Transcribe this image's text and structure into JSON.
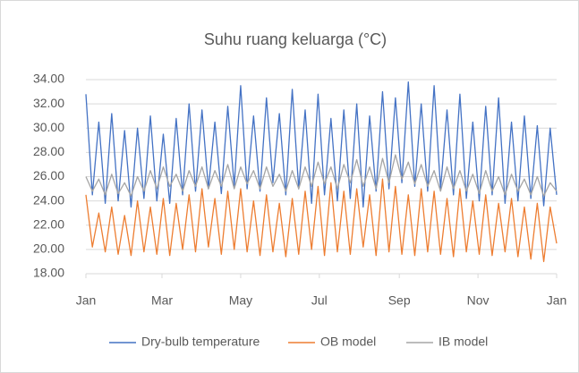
{
  "chart_data": {
    "type": "line",
    "title": "Suhu ruang keluarga (°C)",
    "x": [
      0,
      5,
      10,
      15,
      20,
      25,
      30,
      35,
      40,
      45,
      50,
      55,
      60,
      65,
      70,
      75,
      80,
      85,
      90,
      95,
      100,
      105,
      110,
      115,
      120,
      125,
      130,
      135,
      140,
      145,
      150,
      155,
      160,
      165,
      170,
      175,
      180,
      185,
      190,
      195,
      200,
      205,
      210,
      215,
      220,
      225,
      230,
      235,
      240,
      245,
      250,
      255,
      260,
      265,
      270,
      275,
      280,
      285,
      290,
      295,
      300,
      305,
      310,
      315,
      320,
      325,
      330,
      335,
      340,
      345,
      350,
      355,
      360,
      365
    ],
    "xlim": [
      0,
      365
    ],
    "xticks": [
      {
        "value": 0,
        "label": "Jan"
      },
      {
        "value": 59,
        "label": "Mar"
      },
      {
        "value": 120,
        "label": "May"
      },
      {
        "value": 181,
        "label": "Jul"
      },
      {
        "value": 243,
        "label": "Sep"
      },
      {
        "value": 304,
        "label": "Nov"
      },
      {
        "value": 365,
        "label": "Jan"
      }
    ],
    "ylim": [
      18,
      34
    ],
    "yticks": [
      {
        "value": 18,
        "label": "18.00"
      },
      {
        "value": 20,
        "label": "20.00"
      },
      {
        "value": 22,
        "label": "22.00"
      },
      {
        "value": 24,
        "label": "24.00"
      },
      {
        "value": 26,
        "label": "26.00"
      },
      {
        "value": 28,
        "label": "28.00"
      },
      {
        "value": 30,
        "label": "30.00"
      },
      {
        "value": 32,
        "label": "32.00"
      },
      {
        "value": 34,
        "label": "34.00"
      }
    ],
    "grid": true,
    "legend": "bottom",
    "series": [
      {
        "name": "Dry-bulb temperature",
        "color": "#4472c4",
        "values": [
          32.8,
          24.5,
          30.5,
          23.8,
          31.2,
          24.0,
          29.8,
          23.5,
          30.0,
          24.2,
          31.0,
          24.0,
          29.5,
          23.8,
          30.8,
          24.5,
          32.0,
          24.8,
          31.5,
          25.0,
          30.5,
          24.6,
          31.8,
          25.2,
          33.5,
          25.0,
          31.0,
          24.8,
          32.5,
          25.5,
          31.2,
          24.5,
          33.2,
          25.0,
          31.5,
          23.8,
          32.8,
          24.5,
          30.8,
          24.0,
          31.5,
          24.2,
          32.0,
          23.5,
          31.0,
          24.8,
          33.0,
          25.0,
          32.5,
          25.5,
          33.8,
          25.2,
          32.0,
          24.8,
          33.5,
          25.0,
          31.5,
          24.5,
          32.8,
          24.2,
          30.5,
          24.0,
          31.8,
          24.5,
          32.5,
          23.8,
          30.5,
          24.0,
          31.0,
          24.2,
          30.2,
          23.6,
          30.0,
          24.5
        ]
      },
      {
        "name": "OB model",
        "color": "#ed7d31",
        "values": [
          24.5,
          20.2,
          23.0,
          19.8,
          23.5,
          19.6,
          22.8,
          19.5,
          24.0,
          19.8,
          23.5,
          19.6,
          24.2,
          19.5,
          23.8,
          20.0,
          24.5,
          19.8,
          25.0,
          20.2,
          24.2,
          19.6,
          24.8,
          20.0,
          25.0,
          19.8,
          24.0,
          19.5,
          24.5,
          19.8,
          23.8,
          19.4,
          24.2,
          19.6,
          24.8,
          20.0,
          25.2,
          19.5,
          25.5,
          19.8,
          24.8,
          19.6,
          25.0,
          20.2,
          24.5,
          19.5,
          25.8,
          19.8,
          25.2,
          19.6,
          24.5,
          19.5,
          25.0,
          19.8,
          24.8,
          19.6,
          24.2,
          19.4,
          25.0,
          19.8,
          24.0,
          19.6,
          24.5,
          19.5,
          23.8,
          19.8,
          24.2,
          19.4,
          23.5,
          19.2,
          23.8,
          19.0,
          23.5,
          20.5
        ]
      },
      {
        "name": "IB model",
        "color": "#a5a5a5",
        "values": [
          26.0,
          24.8,
          25.8,
          24.5,
          26.2,
          24.6,
          25.5,
          24.4,
          26.0,
          24.8,
          26.5,
          25.0,
          26.8,
          25.2,
          26.2,
          24.8,
          26.5,
          25.2,
          26.8,
          25.0,
          26.5,
          25.2,
          27.0,
          25.0,
          26.8,
          25.4,
          26.5,
          25.0,
          26.8,
          25.2,
          26.2,
          24.8,
          26.5,
          25.0,
          26.8,
          25.2,
          27.2,
          25.4,
          26.8,
          25.0,
          27.0,
          25.5,
          27.4,
          25.2,
          26.8,
          25.0,
          27.5,
          25.5,
          27.8,
          25.8,
          27.2,
          25.4,
          27.0,
          25.2,
          26.5,
          24.8,
          26.8,
          25.0,
          26.5,
          24.8,
          26.2,
          24.6,
          26.5,
          24.8,
          26.0,
          24.5,
          26.2,
          24.8,
          25.8,
          24.5,
          26.0,
          24.4,
          25.5,
          24.8
        ]
      }
    ]
  }
}
